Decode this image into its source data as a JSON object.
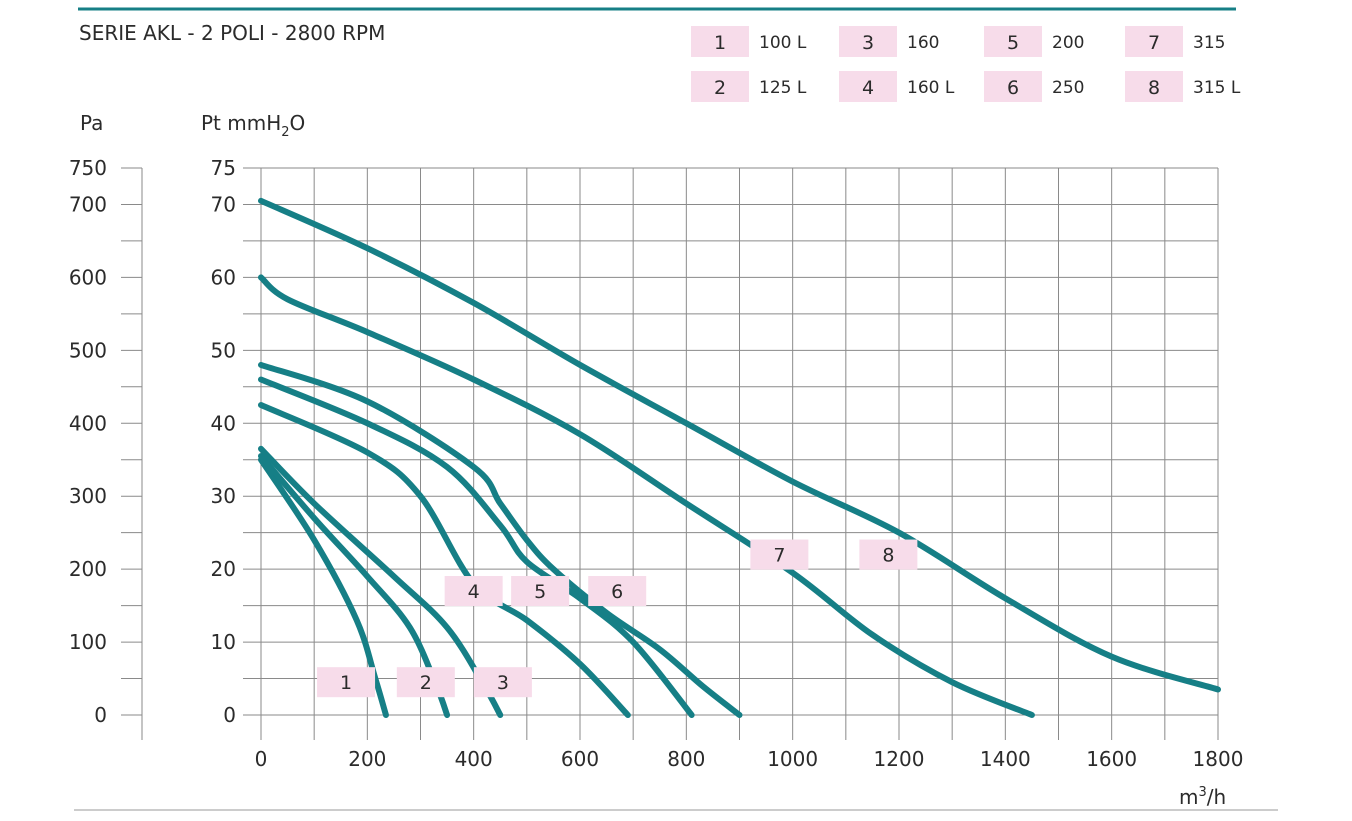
{
  "header": {
    "title": "SERIE AKL -  2 POLI - 2800 RPM"
  },
  "legend": {
    "entries": [
      {
        "num": "1",
        "label": "100 L"
      },
      {
        "num": "3",
        "label": "160"
      },
      {
        "num": "5",
        "label": "200"
      },
      {
        "num": "7",
        "label": "315"
      },
      {
        "num": "2",
        "label": "125 L"
      },
      {
        "num": "4",
        "label": "160 L"
      },
      {
        "num": "6",
        "label": "250"
      },
      {
        "num": "8",
        "label": "315 L"
      }
    ]
  },
  "colors": {
    "curve": "#167f86",
    "rule": "#167f86",
    "tag": "#f7dcea",
    "grid": "#8a8a8a"
  },
  "chart_data": {
    "type": "line",
    "ylabel_left": "Pa",
    "ylabel_right_main": "Pt mmH",
    "ylabel_right_sub": "2",
    "ylabel_right_end": "O",
    "xlabel_main": "m",
    "xlabel_sup": "3",
    "xlabel_end": "/h",
    "xlim": [
      0,
      1800
    ],
    "ylim": [
      0,
      75
    ],
    "ylim_pa": [
      0,
      750
    ],
    "x_ticks": [
      "0",
      "200",
      "400",
      "600",
      "800",
      "1000",
      "1200",
      "1400",
      "1600",
      "1800"
    ],
    "y_ticks": [
      "0",
      "10",
      "20",
      "30",
      "40",
      "50",
      "60",
      "70",
      "75"
    ],
    "pa_ticks": [
      "0",
      "100",
      "200",
      "300",
      "400",
      "500",
      "600",
      "700",
      "750"
    ],
    "series": [
      {
        "name": "1",
        "x": [
          0,
          100,
          180,
          215,
          235
        ],
        "y": [
          35,
          24,
          13,
          5,
          0
        ],
        "tag": [
          160,
          4.5
        ]
      },
      {
        "name": "2",
        "x": [
          0,
          100,
          200,
          280,
          330,
          350
        ],
        "y": [
          35.5,
          27,
          19,
          12,
          4,
          0
        ],
        "tag": [
          310,
          4.5
        ]
      },
      {
        "name": "3",
        "x": [
          0,
          100,
          250,
          350,
          420,
          450
        ],
        "y": [
          36.5,
          29,
          19,
          12,
          4,
          0
        ],
        "tag": [
          455,
          4.5
        ]
      },
      {
        "name": "4",
        "x": [
          0,
          200,
          300,
          400,
          500,
          600,
          690
        ],
        "y": [
          42.5,
          36,
          30,
          18,
          13,
          7,
          0
        ],
        "tag": [
          400,
          17
        ]
      },
      {
        "name": "5",
        "x": [
          0,
          200,
          350,
          450,
          500,
          600,
          700,
          810
        ],
        "y": [
          46,
          40,
          34,
          26,
          21,
          16,
          10,
          0
        ],
        "tag": [
          525,
          17
        ]
      },
      {
        "name": "6",
        "x": [
          0,
          200,
          400,
          450,
          500,
          550,
          650,
          750,
          830,
          900
        ],
        "y": [
          48,
          43,
          34,
          29,
          24,
          20,
          14,
          9,
          4,
          0
        ],
        "tag": [
          670,
          17
        ]
      },
      {
        "name": "7",
        "x": [
          0,
          50,
          200,
          400,
          600,
          800,
          1000,
          1150,
          1300,
          1450
        ],
        "y": [
          60,
          57,
          52.5,
          46,
          38.5,
          29,
          19.5,
          11,
          4.5,
          0
        ],
        "tag": [
          975,
          22
        ]
      },
      {
        "name": "8",
        "x": [
          0,
          200,
          400,
          600,
          800,
          1000,
          1200,
          1400,
          1600,
          1800
        ],
        "y": [
          70.5,
          64,
          56.5,
          48,
          40,
          32,
          25,
          16,
          8,
          3.5
        ],
        "tag": [
          1180,
          22
        ]
      }
    ]
  }
}
